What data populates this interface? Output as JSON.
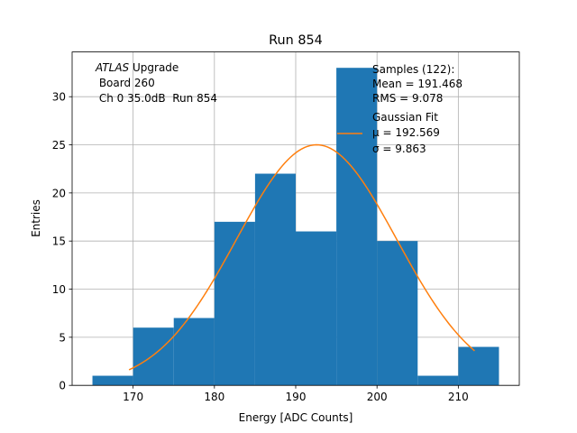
{
  "colors": {
    "bar": "#1f77b4",
    "fit": "#ff7f0e",
    "grid": "#b0b0b0",
    "axis": "#000000"
  },
  "chart_data": {
    "type": "bar",
    "title": "Run 854",
    "xlabel": "Energy [ADC Counts]",
    "ylabel": "Entries",
    "xlim": [
      162.5,
      217.5
    ],
    "ylim": [
      0,
      34.65
    ],
    "grid": true,
    "xticks": [
      170,
      180,
      190,
      200,
      210
    ],
    "yticks": [
      0,
      5,
      10,
      15,
      20,
      25,
      30
    ],
    "bins": [
      {
        "x0": 165,
        "x1": 170,
        "count": 1
      },
      {
        "x0": 170,
        "x1": 175,
        "count": 6
      },
      {
        "x0": 175,
        "x1": 180,
        "count": 7
      },
      {
        "x0": 180,
        "x1": 185,
        "count": 17
      },
      {
        "x0": 185,
        "x1": 190,
        "count": 22
      },
      {
        "x0": 190,
        "x1": 195,
        "count": 16
      },
      {
        "x0": 195,
        "x1": 200,
        "count": 33
      },
      {
        "x0": 200,
        "x1": 205,
        "count": 15
      },
      {
        "x0": 205,
        "x1": 210,
        "count": 1
      },
      {
        "x0": 210,
        "x1": 215,
        "count": 4
      }
    ],
    "fit": {
      "name": "Gaussian Fit",
      "mu": 192.569,
      "sigma": 9.863,
      "amplitude": 25.0,
      "x_range": [
        169.5,
        212
      ]
    },
    "annotation": {
      "atlas_label": "ATLAS",
      "upgrade_label": " Upgrade",
      "board_line": " Board 260",
      "channel_line": " Ch 0 35.0dB  Run 854"
    },
    "legend": {
      "position": "top-right",
      "samples_line": "Samples (122):",
      "mean_line": "Mean = 191.468",
      "rms_line": "RMS = 9.078",
      "fit_label": "Gaussian Fit",
      "mu_line": "μ = 192.569",
      "sigma_line": "σ = 9.863"
    }
  }
}
